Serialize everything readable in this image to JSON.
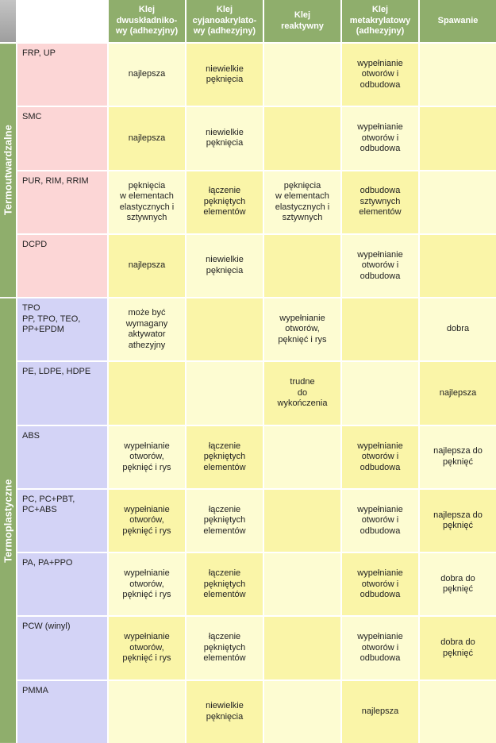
{
  "header": {
    "columns": [
      "Klej\ndwuskładniko-\nwy (adhezyjny)",
      "Klej\ncyjanoakrylato-\nwy (adhezyjny)",
      "Klej\nreaktywny",
      "Klej\nmetakrylatowy\n(adhezyjny)",
      "Spawanie"
    ]
  },
  "groups": [
    {
      "label": "Termoutwardzalne",
      "rows": [
        {
          "material": "FRP, UP",
          "cells": [
            "najlepsza",
            "niewielkie\npęknięcia",
            null,
            "wypełnianie\notworów i\nodbudowa",
            null
          ]
        },
        {
          "material": "SMC",
          "cells": [
            "najlepsza",
            "niewielkie\npęknięcia",
            null,
            "wypełnianie\notworów i\nodbudowa",
            null
          ]
        },
        {
          "material": "PUR, RIM, RRIM",
          "cells": [
            "pęknięcia\nw elementach\nelastycznych i\nsztywnych",
            "łączenie\npękniętych\nelementów",
            "pęknięcia\nw elementach\nelastycznych i\nsztywnych",
            "odbudowa\nsztywnych\nelementów",
            null
          ]
        },
        {
          "material": "DCPD",
          "cells": [
            "najlepsza",
            "niewielkie\npęknięcia",
            null,
            "wypełnianie\notworów i\nodbudowa",
            null
          ]
        }
      ]
    },
    {
      "label": "Termoplastyczne",
      "rows": [
        {
          "material": "TPO\nPP, TPO, TEO,\nPP+EPDM",
          "cells": [
            "może być\nwymagany\naktywator\nathezyjny",
            null,
            "wypełnianie\notworów,\npęknięć i rys",
            null,
            "dobra"
          ]
        },
        {
          "material": "PE, LDPE, HDPE",
          "cells": [
            null,
            null,
            "trudne\ndo\nwykończenia",
            null,
            "najlepsza"
          ]
        },
        {
          "material": "ABS",
          "cells": [
            "wypełnianie\notworów,\npęknięć i rys",
            "łączenie\npękniętych\nelementów",
            null,
            "wypełnianie\notworów i\nodbudowa",
            "najlepsza do\npęknięć"
          ]
        },
        {
          "material": "PC, PC+PBT,\nPC+ABS",
          "cells": [
            "wypełnianie\notworów,\npęknięć i rys",
            "łączenie\npękniętych\nelementów",
            null,
            "wypełnianie\notworów i\nodbudowa",
            "najlepsza do\npęknięć"
          ]
        },
        {
          "material": "PA, PA+PPO",
          "cells": [
            "wypełnianie\notworów,\npęknięć i rys",
            "łączenie\npękniętych\nelementów",
            null,
            "wypełnianie\notworów i\nodbudowa",
            "dobra do\npęknięć"
          ]
        },
        {
          "material": "PCW (winyl)",
          "cells": [
            "wypełnianie\notworów,\npęknięć i rys",
            "łączenie\npękniętych\nelementów",
            null,
            "wypełnianie\notworów i\nodbudowa",
            "dobra do\npęknięć"
          ]
        },
        {
          "material": "PMMA",
          "cells": [
            null,
            "niewielkie\npęknięcia",
            null,
            "najlepsza",
            null
          ]
        }
      ]
    }
  ]
}
